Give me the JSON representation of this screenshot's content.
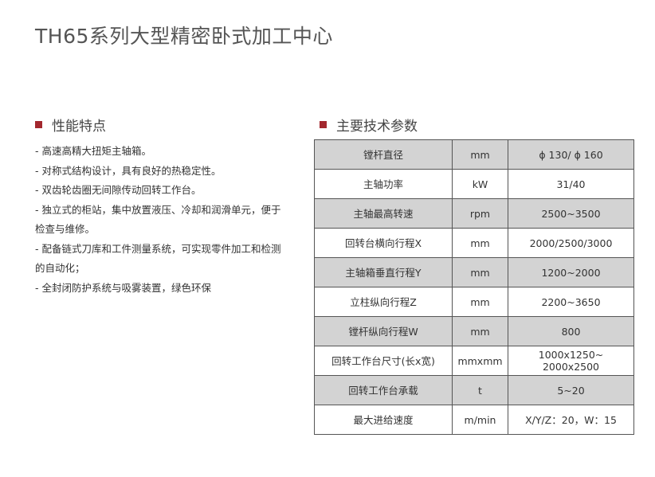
{
  "title": "TH65系列大型精密卧式加工中心",
  "features": {
    "heading": "性能特点",
    "items": [
      "-  高速高精大扭矩主轴箱。",
      "-  对称式结构设计，具有良好的热稳定性。",
      "-  双齿轮齿圈无间隙传动回转工作台。",
      "-    独立式的柜站，集中放置液压、冷却和润滑单元，便于检查与维修。",
      "-    配备链式刀库和工件测量系统，可实现零件加工和检测的自动化；",
      "-  全封闭防护系统与吸雾装置，绿色环保"
    ]
  },
  "specs": {
    "heading": "主要技术参数",
    "rows": [
      [
        "镗杆直径",
        "mm",
        "ϕ 130/ ϕ 160"
      ],
      [
        "主轴功率",
        "kW",
        "31/40"
      ],
      [
        "主轴最高转速",
        "rpm",
        "2500~3500"
      ],
      [
        "回转台横向行程X",
        "mm",
        "2000/2500/3000"
      ],
      [
        "主轴箱垂直行程Y",
        "mm",
        "1200~2000"
      ],
      [
        "立柱纵向行程Z",
        "mm",
        "2200~3650"
      ],
      [
        "镗杆纵向行程W",
        "mm",
        "800"
      ],
      [
        "回转工作台尺寸(长x宽)",
        "mmxmm",
        "1000x1250~\n2000x2500"
      ],
      [
        "回转工作台承载",
        "t",
        "5~20"
      ],
      [
        "最大进给速度",
        "m/min",
        "X/Y/Z：20，W：15"
      ]
    ]
  },
  "colors": {
    "accent": "#a3282e",
    "row_shade": "#d3d3d3"
  }
}
